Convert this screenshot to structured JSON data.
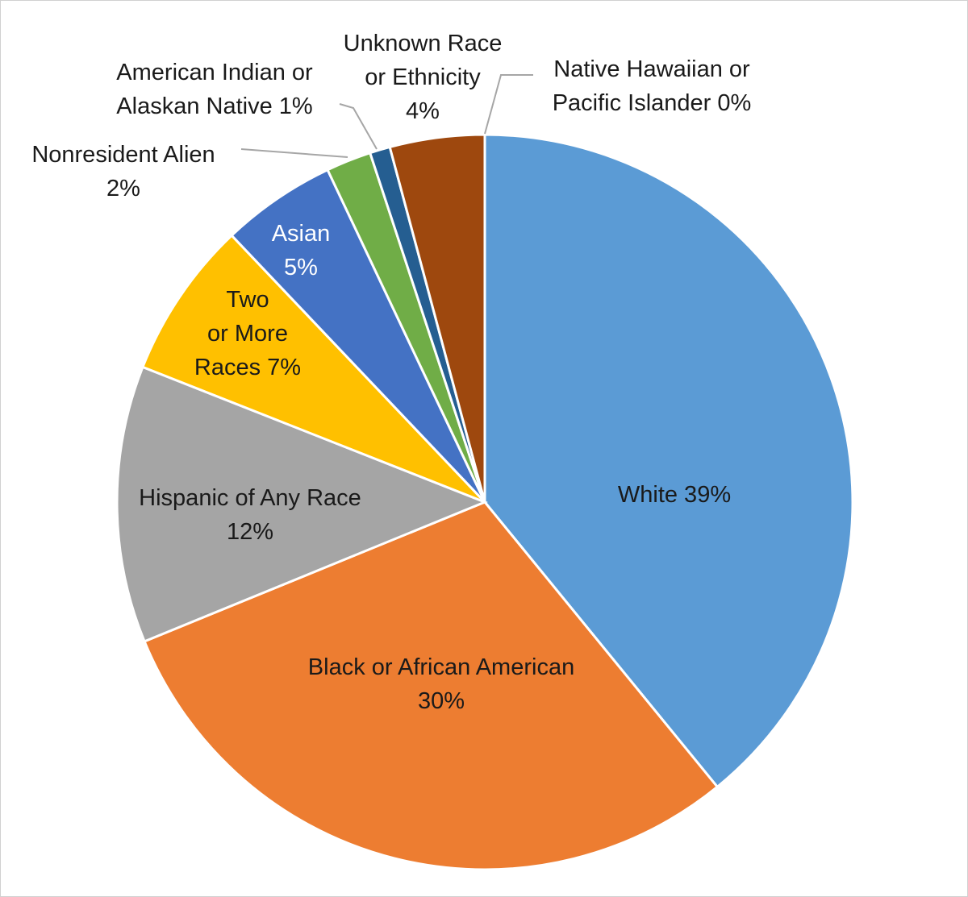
{
  "chart_data": {
    "type": "pie",
    "title": "",
    "start_angle_deg": 0,
    "direction": "clockwise",
    "slices": [
      {
        "name": "White",
        "value": 39.5,
        "label_lines": [
          "White 39%"
        ],
        "color": "#5b9bd5",
        "label_color": "#1a1a1a"
      },
      {
        "name": "Black or African American",
        "value": 30.0,
        "label_lines": [
          "Black or African American",
          "30%"
        ],
        "color": "#ed7d31",
        "label_color": "#1a1a1a"
      },
      {
        "name": "Hispanic of Any Race",
        "value": 12.3,
        "label_lines": [
          "Hispanic of Any Race",
          "12%"
        ],
        "color": "#a5a5a5",
        "label_color": "#1a1a1a"
      },
      {
        "name": "Two or More Races",
        "value": 7.0,
        "label_lines": [
          "Two",
          "or More",
          "Races 7%"
        ],
        "color": "#ffc000",
        "label_color": "#1a1a1a"
      },
      {
        "name": "Asian",
        "value": 5.1,
        "label_lines": [
          "Asian",
          "5%"
        ],
        "color": "#4472c4",
        "label_color": "#ffffff"
      },
      {
        "name": "Nonresident Alien",
        "value": 2.0,
        "label_lines": [
          "Nonresident Alien",
          "2%"
        ],
        "color": "#70ad47",
        "label_color": "#1a1a1a"
      },
      {
        "name": "American Indian or Alaskan Native",
        "value": 0.9,
        "label_lines": [
          "American Indian or",
          "Alaskan Native 1%"
        ],
        "color": "#255e91",
        "label_color": "#1a1a1a"
      },
      {
        "name": "Unknown Race or Ethnicity",
        "value": 4.2,
        "label_lines": [
          "Unknown Race",
          "or Ethnicity",
          "4%"
        ],
        "color": "#9e480e",
        "label_color": "#1a1a1a"
      },
      {
        "name": "Native Hawaiian or Pacific Islander",
        "value": 0.0,
        "label_lines": [
          "Native Hawaiian or",
          "Pacific Islander 0%"
        ],
        "color": "#636363",
        "label_color": "#1a1a1a"
      }
    ]
  }
}
